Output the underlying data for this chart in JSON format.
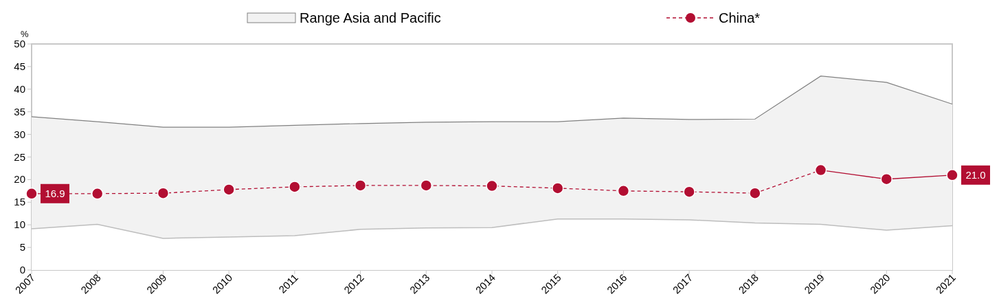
{
  "chart_data": {
    "type": "line",
    "ylabel": "%",
    "categories": [
      "2007",
      "2008",
      "2009",
      "2010",
      "2011",
      "2012",
      "2013",
      "2014",
      "2015",
      "2016",
      "2017",
      "2018",
      "2019",
      "2020",
      "2021"
    ],
    "series": [
      {
        "name": "Range Asia and Pacific",
        "type": "area",
        "color": "#f2f2f2",
        "values": [
          33.9,
          32.8,
          31.6,
          31.6,
          32.0,
          32.4,
          32.7,
          32.8,
          32.8,
          33.6,
          33.3,
          33.4,
          42.9,
          41.5,
          36.7
        ]
      },
      {
        "type": "area",
        "color": "#ffffff",
        "values": [
          9.1,
          10.1,
          7.0,
          7.3,
          7.6,
          9.0,
          9.3,
          9.4,
          11.3,
          11.3,
          11.1,
          10.4,
          10.1,
          8.8,
          9.8
        ]
      },
      {
        "name": "China*",
        "type": "line",
        "color": "#b20e32",
        "line_style": "dashed",
        "marker": "circle",
        "values": [
          16.9,
          16.9,
          17.0,
          17.8,
          18.4,
          18.7,
          18.7,
          18.6,
          18.1,
          17.5,
          17.3,
          17.0,
          22.1,
          null,
          null
        ],
        "value_labels": [
          "16.9",
          null,
          null,
          null,
          null,
          null,
          null,
          null,
          null,
          null,
          null,
          null,
          null,
          null,
          null
        ]
      },
      {
        "type": "line",
        "color": "#b20e32",
        "line_style": "solid",
        "marker": "circle",
        "values": [
          null,
          null,
          null,
          null,
          null,
          null,
          null,
          null,
          null,
          null,
          null,
          null,
          22.1,
          20.1,
          21.0
        ],
        "value_labels": [
          null,
          null,
          null,
          null,
          null,
          null,
          null,
          null,
          null,
          null,
          null,
          null,
          null,
          null,
          "21.0"
        ]
      }
    ],
    "ylim": [
      0,
      50
    ],
    "yticks": [
      0,
      5,
      10,
      15,
      20,
      25,
      30,
      35,
      40,
      45,
      50
    ],
    "grid": false,
    "legend": "top"
  }
}
